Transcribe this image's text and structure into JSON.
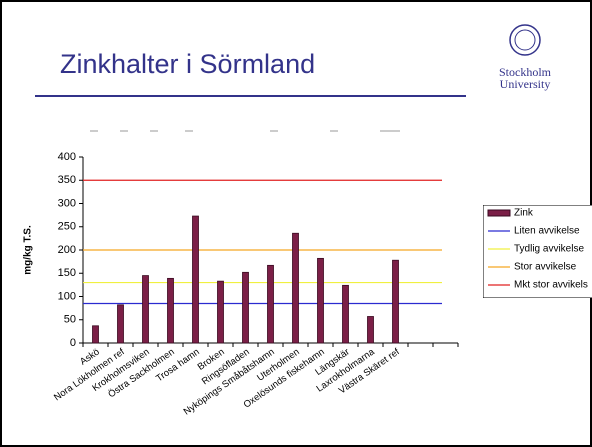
{
  "slide": {
    "title": "Zinkhalter i Sörmland",
    "logo": [
      "Stockholm",
      "University"
    ]
  },
  "chart_data": {
    "type": "bar",
    "ylabel": "mg/kg T.S.",
    "categories": [
      "Askö",
      "Nora Lökholmen ref",
      "Krokholmsviken",
      "Östra Sackholmen",
      "Trosa hamn",
      "Broken",
      "Ringsöfladen",
      "Nyköpings Småbåtshamn",
      "Uterholmen",
      "Oxelösunds fiskehamn",
      "Längskär",
      "Laxrokholmarna",
      "Västra Skäret ref",
      null,
      null
    ],
    "series": [
      {
        "name": "Zink",
        "color": "#7b1f47",
        "values": [
          37,
          82,
          145,
          139,
          273,
          133,
          152,
          167,
          236,
          182,
          124,
          57,
          178,
          null,
          null
        ]
      }
    ],
    "thresholds": [
      {
        "name": "Liten avvikelse",
        "color": "#2b2bd0",
        "value": 85
      },
      {
        "name": "Tydlig avvikelse",
        "color": "#f0f040",
        "value": 130
      },
      {
        "name": "Stor avvikelse",
        "color": "#f5a623",
        "value": 200
      },
      {
        "name": "Mkt stor avvikels",
        "color": "#e02020",
        "value": 350
      }
    ],
    "ylim": [
      0,
      400
    ],
    "yticks": [
      0,
      50,
      100,
      150,
      200,
      250,
      300,
      350,
      400
    ],
    "legend": "right"
  }
}
